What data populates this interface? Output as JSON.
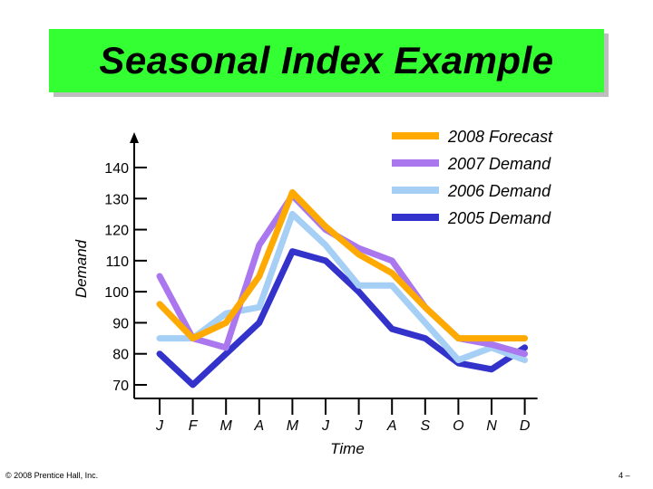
{
  "title": "Seasonal Index Example",
  "footer": {
    "copyright": "© 2008 Prentice Hall, Inc.",
    "page": "4 –"
  },
  "colors": {
    "title_bg": "#33ff33"
  },
  "chart_data": {
    "type": "line",
    "xlabel": "Time",
    "ylabel": "Demand",
    "categories": [
      "J",
      "F",
      "M",
      "A",
      "M",
      "J",
      "J",
      "A",
      "S",
      "O",
      "N",
      "D"
    ],
    "y_ticks": [
      70,
      80,
      90,
      100,
      110,
      120,
      130,
      140
    ],
    "ylim": [
      65,
      150
    ],
    "legend_position": "top-right",
    "series": [
      {
        "name": "2005 Demand",
        "color": "#3333cc",
        "values": [
          80,
          70,
          80,
          90,
          113,
          110,
          100,
          88,
          85,
          77,
          75,
          82
        ]
      },
      {
        "name": "2006 Demand",
        "color": "#a6cff5",
        "values": [
          85,
          85,
          93,
          95,
          125,
          115,
          102,
          102,
          90,
          78,
          82,
          78
        ]
      },
      {
        "name": "2007 Demand",
        "color": "#aa77ee",
        "values": [
          105,
          85,
          82,
          115,
          131,
          120,
          114,
          110,
          95,
          85,
          83,
          80
        ]
      },
      {
        "name": "2008 Forecast",
        "color": "#ffaa00",
        "values": [
          96,
          85,
          90,
          105,
          132,
          121,
          112,
          106,
          95,
          85,
          85,
          85
        ]
      }
    ],
    "legend_order": [
      "2008 Forecast",
      "2007 Demand",
      "2006 Demand",
      "2005 Demand"
    ]
  }
}
